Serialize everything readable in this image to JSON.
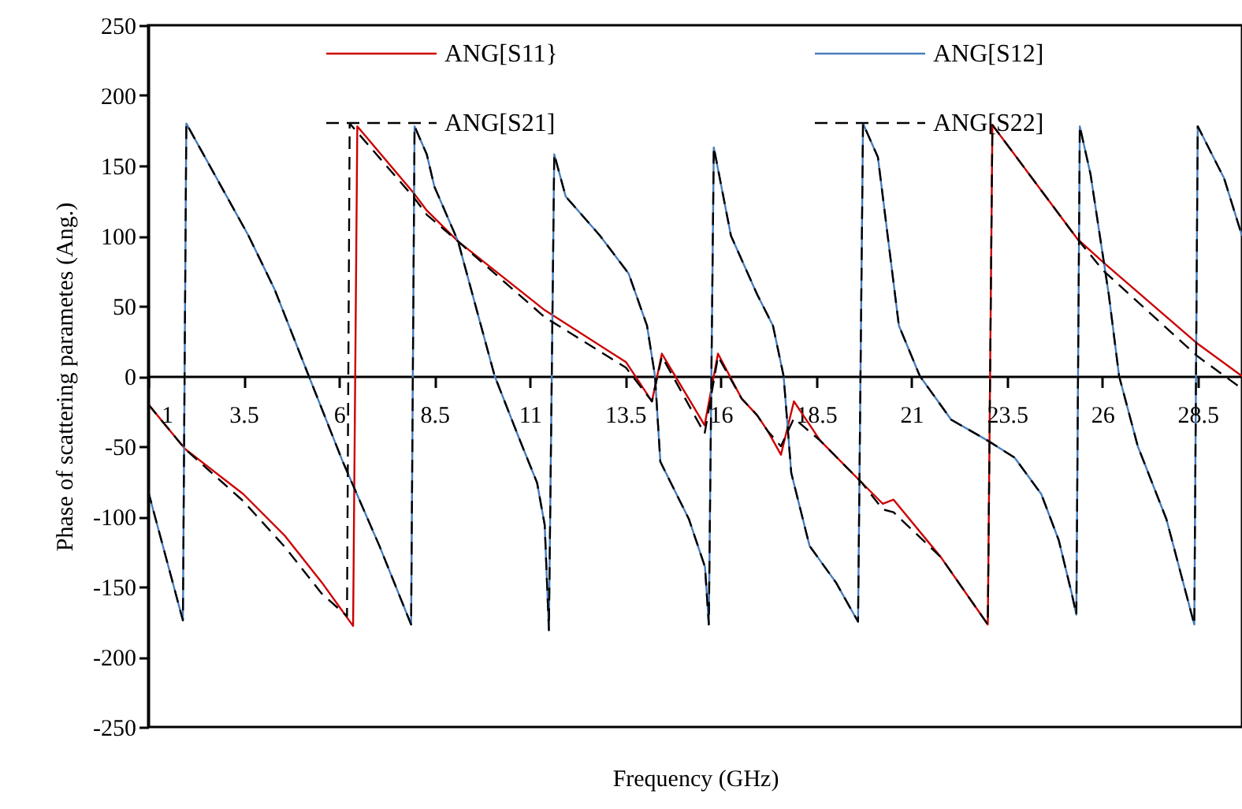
{
  "chart_data": {
    "type": "line",
    "xlabel": "Frequency (GHz)",
    "ylabel": "Phase of scattering parametes (Ang.)",
    "xlim": [
      1,
      29.66
    ],
    "xticks": [
      1,
      3.5,
      6,
      8.5,
      11,
      13.5,
      16,
      18.5,
      21,
      23.5,
      26,
      28.5
    ],
    "ylim": [
      -250,
      250
    ],
    "yticks": [
      -250,
      -200,
      -150,
      -100,
      -50,
      0,
      50,
      100,
      150,
      200,
      250
    ],
    "legend": "top",
    "series": [
      {
        "name": "ANG[S11}",
        "color": "#cc0000",
        "line_style": "solid",
        "x": [
          1,
          1.97,
          3.49,
          4.59,
          5.55,
          6.37,
          6.48,
          7.97,
          8.3,
          9.12,
          11.39,
          13.52,
          14.2,
          14.46,
          15.58,
          15.93,
          16.55,
          16.96,
          17.23,
          17.58,
          17.92,
          18.61,
          19.7,
          20.25,
          20.53,
          21.77,
          23.0,
          23.12,
          25.34,
          26.03,
          28.5,
          29.66
        ],
        "values": [
          -20,
          -52,
          -84,
          -114,
          -147,
          -178,
          178,
          130,
          118,
          96,
          47,
          10,
          -18,
          16,
          -35,
          16,
          -16,
          -28,
          -39,
          -56,
          -18,
          -46,
          -76,
          -91,
          -88,
          -129,
          -177,
          179,
          98,
          81,
          23,
          0
        ]
      },
      {
        "name": "ANG[S12]",
        "color": "#4a7ebb",
        "line_style": "solid",
        "x": [
          1,
          1.91,
          2.0,
          3.63,
          4.31,
          5.21,
          6.1,
          7.06,
          7.89,
          7.98,
          8.3,
          8.5,
          9.12,
          10.08,
          10.7,
          11.19,
          11.39,
          11.5,
          11.64,
          11.94,
          12.84,
          13.59,
          14.07,
          14.28,
          14.42,
          15.17,
          15.59,
          15.69,
          15.82,
          16.27,
          16.96,
          17.37,
          17.65,
          17.85,
          18.33,
          19.02,
          19.6,
          19.73,
          20.12,
          20.67,
          21.22,
          22.04,
          23.0,
          23.7,
          24.4,
          24.86,
          25.2,
          25.32,
          25.41,
          25.69,
          26.17,
          26.44,
          26.93,
          27.68,
          28.41,
          28.5,
          29.19,
          29.66
        ],
        "values": [
          -82,
          -174,
          180,
          100,
          62,
          0,
          -61,
          -121,
          -177,
          178,
          158,
          135,
          96,
          0,
          -43,
          -76,
          -106,
          -181,
          158,
          128,
          100,
          73,
          36,
          0,
          -61,
          -102,
          -136,
          -177,
          163,
          100,
          58,
          36,
          0,
          -69,
          -121,
          -147,
          -175,
          180,
          156,
          36,
          0,
          -31,
          -46,
          -58,
          -84,
          -117,
          -155,
          -170,
          178,
          144,
          58,
          0,
          -50,
          -102,
          -177,
          178,
          141,
          100
        ]
      },
      {
        "name": "ANG[S21]",
        "color": "#000000",
        "line_style": "dashed",
        "x": [
          1,
          1.91,
          2.0,
          3.63,
          4.31,
          5.21,
          6.1,
          7.06,
          7.89,
          7.98,
          8.3,
          8.5,
          9.12,
          10.08,
          10.7,
          11.19,
          11.39,
          11.5,
          11.64,
          11.94,
          12.84,
          13.59,
          14.07,
          14.28,
          14.42,
          15.17,
          15.59,
          15.69,
          15.82,
          16.27,
          16.96,
          17.37,
          17.65,
          17.85,
          18.33,
          19.02,
          19.6,
          19.73,
          20.12,
          20.67,
          21.22,
          22.04,
          23.0,
          23.7,
          24.4,
          24.86,
          25.2,
          25.32,
          25.41,
          25.69,
          26.17,
          26.44,
          26.93,
          27.68,
          28.41,
          28.5,
          29.19,
          29.66
        ],
        "values": [
          -82,
          -174,
          180,
          100,
          62,
          0,
          -61,
          -121,
          -177,
          178,
          158,
          135,
          96,
          0,
          -43,
          -76,
          -106,
          -181,
          158,
          128,
          100,
          73,
          36,
          0,
          -61,
          -102,
          -136,
          -177,
          163,
          100,
          58,
          36,
          0,
          -69,
          -121,
          -147,
          -175,
          180,
          156,
          36,
          0,
          -31,
          -46,
          -58,
          -84,
          -117,
          -155,
          -170,
          178,
          144,
          58,
          0,
          -50,
          -102,
          -177,
          178,
          141,
          100
        ]
      },
      {
        "name": "ANG[S22]",
        "color": "#000000",
        "line_style": "dashed",
        "x": [
          1,
          1.97,
          3.49,
          4.59,
          5.55,
          6.21,
          6.28,
          7.97,
          8.3,
          9.12,
          11.39,
          13.52,
          14.2,
          14.46,
          15.58,
          15.93,
          16.55,
          16.96,
          17.23,
          17.58,
          17.92,
          18.61,
          19.7,
          20.25,
          20.53,
          21.77,
          23.0,
          23.12,
          25.34,
          26.03,
          28.5,
          29.66
        ],
        "values": [
          -20,
          -52,
          -89,
          -122,
          -155,
          -171,
          180,
          127,
          115,
          96,
          42,
          6,
          -18,
          14,
          -41,
          14,
          -16,
          -28,
          -39,
          -50,
          -30,
          -46,
          -76,
          -95,
          -97,
          -129,
          -177,
          179,
          98,
          75,
          14,
          -9
        ]
      }
    ]
  }
}
